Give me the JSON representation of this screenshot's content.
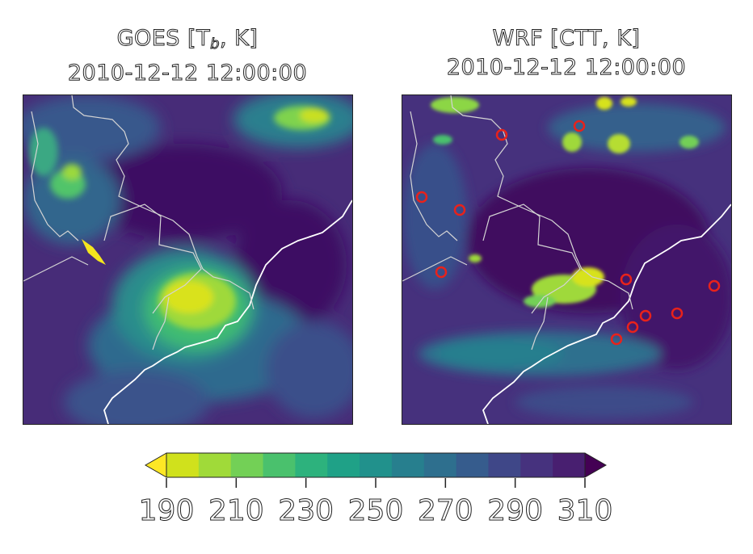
{
  "left_panel": {
    "title_prefix": "GOES [T",
    "title_sub": "b",
    "title_suffix": ", K]",
    "time": "2010-12-12 12:00:00"
  },
  "right_panel": {
    "title": "WRF [CTT, K]",
    "time": "2010-12-12 12:00:00"
  },
  "colorbar": {
    "ticks": [
      "190",
      "210",
      "230",
      "250",
      "270",
      "290",
      "310"
    ],
    "colors": [
      "#fde725",
      "#d0e11c",
      "#a0da39",
      "#73d056",
      "#4ac16d",
      "#2db27d",
      "#1fa187",
      "#21918c",
      "#277f8e",
      "#2e6f8e",
      "#365c8d",
      "#3f4788",
      "#46327e",
      "#481f70",
      "#440154"
    ]
  },
  "map_colors": {
    "background": "#4a2b77",
    "dark": "#3e1260",
    "mid": "#355d8c",
    "teal": "#29798e",
    "green": "#3bb77a",
    "bright": "#cde11d",
    "coast": "#ffffff",
    "border": "#d9d9d9",
    "marker": "#e8221b"
  }
}
